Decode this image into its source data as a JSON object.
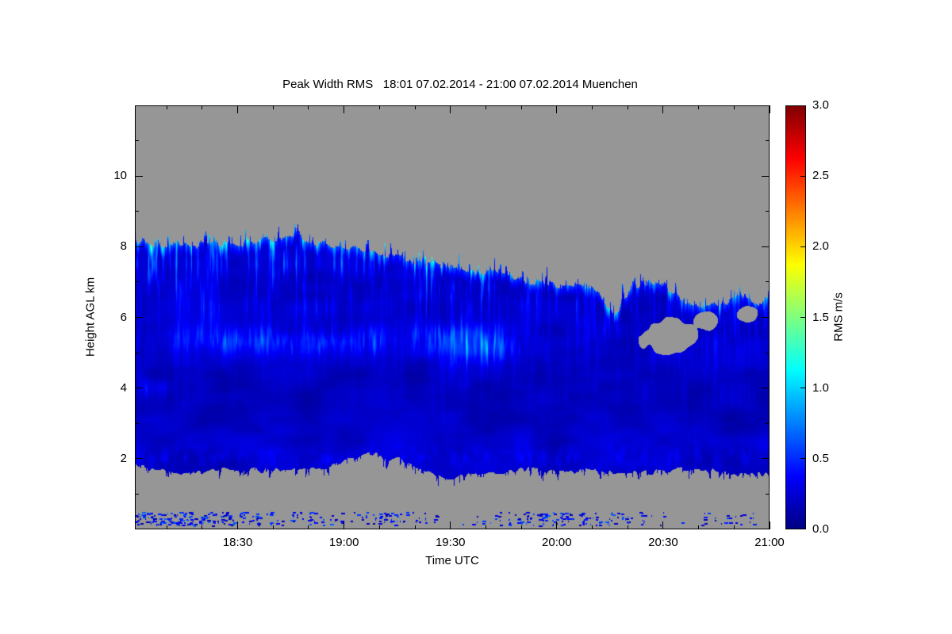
{
  "chart_data": {
    "type": "heatmap",
    "title": "Peak Width RMS   18:01 07.02.2014 - 21:00 07.02.2014 Muenchen",
    "xlim_hours": [
      18.0167,
      21.0
    ],
    "ylim_km": [
      0,
      12
    ],
    "x_axis": {
      "label": "Time UTC",
      "ticks": [
        {
          "t": 18.5,
          "label": "18:30"
        },
        {
          "t": 19.0,
          "label": "19:00"
        },
        {
          "t": 19.5,
          "label": "19:30"
        },
        {
          "t": 20.0,
          "label": "20:00"
        },
        {
          "t": 20.5,
          "label": "20:30"
        },
        {
          "t": 21.0,
          "label": "21:00"
        }
      ],
      "minor_step_hours": 0.1666667
    },
    "y_axis": {
      "label": "Height AGL km",
      "ticks": [
        {
          "v": 2,
          "label": "2"
        },
        {
          "v": 4,
          "label": "4"
        },
        {
          "v": 6,
          "label": "6"
        },
        {
          "v": 8,
          "label": "8"
        },
        {
          "v": 10,
          "label": "10"
        }
      ],
      "minor_ticks_km": [
        1,
        3,
        5,
        7,
        9,
        11
      ]
    },
    "colorbar": {
      "label": "RMS m/s",
      "vmin": 0,
      "vmax": 3,
      "ticks": [
        {
          "v": 0.0,
          "label": "0.0"
        },
        {
          "v": 0.5,
          "label": "0.5"
        },
        {
          "v": 1.0,
          "label": "1.0"
        },
        {
          "v": 1.5,
          "label": "1.5"
        },
        {
          "v": 2.0,
          "label": "2.0"
        },
        {
          "v": 2.5,
          "label": "2.5"
        },
        {
          "v": 3.0,
          "label": "3.0"
        }
      ]
    },
    "colormap_stops": [
      {
        "p": 0.0,
        "c": [
          0,
          0,
          131
        ]
      },
      {
        "p": 0.125,
        "c": [
          0,
          0,
          255
        ]
      },
      {
        "p": 0.375,
        "c": [
          0,
          255,
          255
        ]
      },
      {
        "p": 0.625,
        "c": [
          255,
          255,
          0
        ]
      },
      {
        "p": 0.875,
        "c": [
          255,
          0,
          0
        ]
      },
      {
        "p": 1.0,
        "c": [
          128,
          0,
          0
        ]
      }
    ],
    "no_data_color": "#969696",
    "echo": {
      "value_floor": 0.08,
      "value_noise_amp": 0.26,
      "value_cap": 1.3,
      "top_km": [
        [
          18.02,
          8.15
        ],
        [
          18.25,
          8.05
        ],
        [
          18.55,
          8.1
        ],
        [
          18.72,
          8.3
        ],
        [
          18.8,
          8.15
        ],
        [
          19.0,
          8.0
        ],
        [
          19.15,
          7.85
        ],
        [
          19.3,
          7.6
        ],
        [
          19.5,
          7.45
        ],
        [
          19.65,
          7.25
        ],
        [
          19.8,
          7.1
        ],
        [
          20.0,
          6.95
        ],
        [
          20.2,
          6.75
        ],
        [
          20.27,
          6.05
        ],
        [
          20.35,
          6.9
        ],
        [
          20.5,
          6.95
        ],
        [
          20.62,
          6.35
        ],
        [
          20.75,
          6.3
        ],
        [
          20.85,
          6.55
        ],
        [
          20.95,
          6.45
        ],
        [
          21.0,
          6.6
        ]
      ],
      "base_km": [
        [
          18.02,
          1.8
        ],
        [
          18.2,
          1.6
        ],
        [
          18.45,
          1.7
        ],
        [
          18.7,
          1.65
        ],
        [
          18.95,
          1.8
        ],
        [
          19.12,
          2.15
        ],
        [
          19.25,
          2.0
        ],
        [
          19.35,
          1.7
        ],
        [
          19.5,
          1.45
        ],
        [
          19.65,
          1.55
        ],
        [
          19.85,
          1.7
        ],
        [
          20.1,
          1.65
        ],
        [
          20.35,
          1.6
        ],
        [
          20.6,
          1.7
        ],
        [
          20.8,
          1.6
        ],
        [
          21.0,
          1.55
        ]
      ],
      "holes": [
        {
          "t": 20.53,
          "h": 5.45,
          "rt": 0.14,
          "rh": 0.5
        },
        {
          "t": 20.7,
          "h": 5.9,
          "rt": 0.06,
          "rh": 0.25
        },
        {
          "t": 20.9,
          "h": 6.1,
          "rt": 0.05,
          "rh": 0.25
        }
      ],
      "streak_mask": [
        [
          18.02,
          1.0
        ],
        [
          18.6,
          1.0
        ],
        [
          18.9,
          0.85
        ],
        [
          19.1,
          0.55
        ],
        [
          19.3,
          0.75
        ],
        [
          19.55,
          0.85
        ],
        [
          19.8,
          0.6
        ],
        [
          20.0,
          0.55
        ],
        [
          20.3,
          0.45
        ],
        [
          20.6,
          0.5
        ],
        [
          21.0,
          0.55
        ]
      ],
      "bright_patches": [
        {
          "t": 19.63,
          "h": 5.15,
          "rt": 0.13,
          "rh": 0.5,
          "amp": 0.85
        },
        {
          "t": 19.5,
          "h": 5.5,
          "rt": 0.1,
          "rh": 0.3,
          "amp": 0.4
        },
        {
          "t": 18.45,
          "h": 5.35,
          "rt": 0.35,
          "rh": 0.35,
          "amp": 0.3
        },
        {
          "t": 19.0,
          "h": 5.3,
          "rt": 0.3,
          "rh": 0.3,
          "amp": 0.25
        },
        {
          "t": 18.1,
          "h": 4.0,
          "rt": 0.08,
          "rh": 0.3,
          "amp": 0.35
        }
      ],
      "mid_layer": {
        "h": 5.35,
        "sigma": 0.45,
        "t0": 18.2,
        "t1": 19.95,
        "amp": 0.3
      },
      "low_band": {
        "h": 2.05,
        "sigma": 0.3,
        "amp": 0.22
      },
      "surface_speckles": {
        "h_min": 0.12,
        "h_max": 0.5,
        "density": [
          [
            18.03,
            0.75
          ],
          [
            18.4,
            0.7
          ],
          [
            18.6,
            0.35
          ],
          [
            18.85,
            0.3
          ],
          [
            19.05,
            0.2
          ],
          [
            19.3,
            0.3
          ],
          [
            19.55,
            0.08
          ],
          [
            19.75,
            0.15
          ],
          [
            19.95,
            0.5
          ],
          [
            20.15,
            0.4
          ],
          [
            20.35,
            0.3
          ],
          [
            20.55,
            0.1
          ],
          [
            20.8,
            0.2
          ],
          [
            21.0,
            0.12
          ]
        ]
      }
    }
  }
}
